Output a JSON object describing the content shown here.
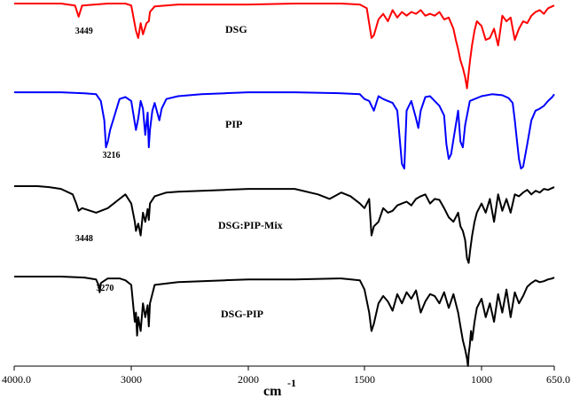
{
  "chart_data": {
    "type": "line",
    "title": "",
    "xlabel": "cm",
    "xlabel_exponent": "-1",
    "ylabel": "",
    "x_reversed": true,
    "xlim": [
      4000,
      650
    ],
    "x_ticks": [
      {
        "value": 4000,
        "label": "4000.0"
      },
      {
        "value": 3000,
        "label": "3000"
      },
      {
        "value": 2000,
        "label": "2000"
      },
      {
        "value": 1500,
        "label": "1500"
      },
      {
        "value": 1000,
        "label": "1000"
      },
      {
        "value": 650,
        "label": "650.0"
      }
    ],
    "grid": false,
    "series": [
      {
        "name": "DSG",
        "color": "#ff0000",
        "annotations": [
          {
            "x": 3449,
            "label": "3449"
          }
        ],
        "x": [
          4000,
          3600,
          3480,
          3449,
          3420,
          3200,
          3050,
          3000,
          2960,
          2940,
          2920,
          2900,
          2870,
          2850,
          2840,
          2800,
          2600,
          2200,
          2000,
          1800,
          1600,
          1520,
          1490,
          1470,
          1460,
          1440,
          1420,
          1400,
          1380,
          1360,
          1340,
          1320,
          1300,
          1280,
          1260,
          1240,
          1220,
          1200,
          1180,
          1160,
          1140,
          1120,
          1110,
          1100,
          1090,
          1080,
          1070,
          1062,
          1055,
          1048,
          1040,
          1030,
          1020,
          1000,
          980,
          960,
          940,
          920,
          910,
          900,
          880,
          860,
          840,
          820,
          800,
          780,
          760,
          740,
          720,
          700,
          680,
          660,
          650
        ],
        "y": [
          99,
          99,
          97,
          85,
          97,
          99,
          99,
          97,
          70,
          62,
          78,
          66,
          78,
          80,
          90,
          96,
          98,
          98,
          98,
          99,
          99,
          98,
          94,
          62,
          65,
          82,
          88,
          80,
          92,
          84,
          90,
          86,
          90,
          88,
          92,
          86,
          88,
          86,
          90,
          82,
          84,
          72,
          60,
          50,
          38,
          30,
          20,
          8,
          25,
          40,
          55,
          70,
          80,
          75,
          60,
          62,
          72,
          54,
          70,
          86,
          80,
          84,
          60,
          72,
          80,
          78,
          86,
          90,
          92,
          88,
          94,
          96,
          97
        ]
      },
      {
        "name": "PIP",
        "color": "#0000ff",
        "annotations": [
          {
            "x": 3216,
            "label": "3216"
          }
        ],
        "x": [
          4000,
          3600,
          3400,
          3300,
          3260,
          3230,
          3216,
          3200,
          3180,
          3100,
          3050,
          3000,
          2960,
          2940,
          2920,
          2900,
          2880,
          2860,
          2850,
          2840,
          2820,
          2800,
          2760,
          2740,
          2700,
          2600,
          2400,
          2200,
          2000,
          1800,
          1600,
          1520,
          1500,
          1480,
          1460,
          1440,
          1420,
          1400,
          1380,
          1360,
          1340,
          1330,
          1320,
          1300,
          1280,
          1270,
          1260,
          1240,
          1220,
          1200,
          1180,
          1160,
          1150,
          1140,
          1130,
          1120,
          1100,
          1090,
          1080,
          1070,
          1050,
          1000,
          950,
          900,
          870,
          850,
          840,
          830,
          820,
          810,
          800,
          780,
          760,
          740,
          720,
          700,
          680,
          660,
          650
        ],
        "y": [
          99,
          99,
          98,
          97,
          90,
          70,
          42,
          48,
          60,
          92,
          94,
          90,
          60,
          72,
          90,
          82,
          55,
          78,
          42,
          60,
          80,
          88,
          70,
          82,
          92,
          95,
          97,
          98,
          99,
          99,
          98,
          97,
          92,
          90,
          80,
          95,
          92,
          90,
          88,
          80,
          25,
          20,
          80,
          90,
          72,
          62,
          80,
          94,
          95,
          90,
          85,
          75,
          45,
          30,
          35,
          50,
          80,
          48,
          42,
          65,
          90,
          95,
          97,
          96,
          93,
          88,
          70,
          50,
          30,
          20,
          22,
          45,
          70,
          80,
          82,
          85,
          90,
          94,
          97
        ]
      },
      {
        "name": "DSG:PIP-Mix",
        "color": "#000000",
        "annotations": [
          {
            "x": 3448,
            "label": "3448"
          }
        ],
        "x": [
          4000,
          3800,
          3700,
          3600,
          3500,
          3470,
          3450,
          3420,
          3300,
          3200,
          3100,
          3050,
          3000,
          2970,
          2960,
          2940,
          2920,
          2900,
          2880,
          2860,
          2850,
          2840,
          2800,
          2700,
          2600,
          2400,
          2200,
          2000,
          1800,
          1700,
          1650,
          1600,
          1560,
          1520,
          1500,
          1480,
          1470,
          1460,
          1440,
          1420,
          1400,
          1380,
          1360,
          1340,
          1320,
          1300,
          1280,
          1260,
          1240,
          1220,
          1200,
          1180,
          1160,
          1140,
          1120,
          1100,
          1090,
          1080,
          1070,
          1062,
          1055,
          1048,
          1040,
          1030,
          1020,
          1000,
          980,
          960,
          940,
          920,
          900,
          880,
          860,
          840,
          820,
          800,
          780,
          760,
          740,
          720,
          700,
          680,
          660,
          650
        ],
        "y": [
          99,
          99,
          98,
          96,
          90,
          80,
          72,
          75,
          70,
          75,
          85,
          90,
          80,
          60,
          50,
          58,
          45,
          70,
          60,
          74,
          62,
          80,
          88,
          92,
          93,
          94,
          95,
          96,
          96,
          90,
          85,
          92,
          88,
          80,
          75,
          85,
          45,
          55,
          60,
          75,
          70,
          72,
          78,
          80,
          82,
          78,
          85,
          88,
          90,
          80,
          85,
          84,
          75,
          65,
          60,
          70,
          55,
          50,
          40,
          20,
          15,
          30,
          45,
          60,
          70,
          80,
          70,
          85,
          60,
          90,
          72,
          85,
          70,
          90,
          88,
          92,
          95,
          90,
          94,
          92,
          96,
          95,
          97,
          98
        ]
      },
      {
        "name": "DSG-PIP",
        "color": "#000000",
        "annotations": [
          {
            "x": 3270,
            "label": "3270"
          }
        ],
        "x": [
          4000,
          3600,
          3400,
          3300,
          3280,
          3270,
          3260,
          3200,
          3100,
          3050,
          3000,
          2970,
          2960,
          2950,
          2940,
          2920,
          2900,
          2880,
          2860,
          2850,
          2840,
          2800,
          2600,
          2400,
          2200,
          2000,
          1800,
          1600,
          1520,
          1500,
          1480,
          1470,
          1460,
          1440,
          1420,
          1400,
          1380,
          1360,
          1340,
          1320,
          1300,
          1280,
          1260,
          1240,
          1220,
          1200,
          1180,
          1160,
          1140,
          1120,
          1100,
          1090,
          1080,
          1070,
          1062,
          1058,
          1055,
          1050,
          1045,
          1040,
          1030,
          1020,
          1000,
          980,
          960,
          940,
          920,
          900,
          880,
          860,
          840,
          820,
          800,
          780,
          760,
          740,
          720,
          700,
          680,
          660,
          650
        ],
        "y": [
          99,
          99,
          98,
          96,
          90,
          82,
          92,
          97,
          97,
          95,
          90,
          50,
          60,
          35,
          55,
          40,
          70,
          55,
          68,
          45,
          70,
          90,
          93,
          94,
          95,
          96,
          96,
          97,
          95,
          85,
          60,
          40,
          48,
          70,
          78,
          72,
          62,
          80,
          70,
          82,
          75,
          84,
          60,
          72,
          80,
          78,
          70,
          82,
          65,
          80,
          60,
          45,
          30,
          20,
          10,
          2,
          15,
          25,
          40,
          30,
          50,
          65,
          75,
          55,
          70,
          50,
          80,
          60,
          85,
          55,
          82,
          70,
          78,
          88,
          92,
          95,
          93,
          94,
          96,
          97,
          98
        ]
      }
    ],
    "series_labels": [
      "DSG",
      "PIP",
      "DSG:PIP-Mix",
      "DSG-PIP"
    ]
  }
}
